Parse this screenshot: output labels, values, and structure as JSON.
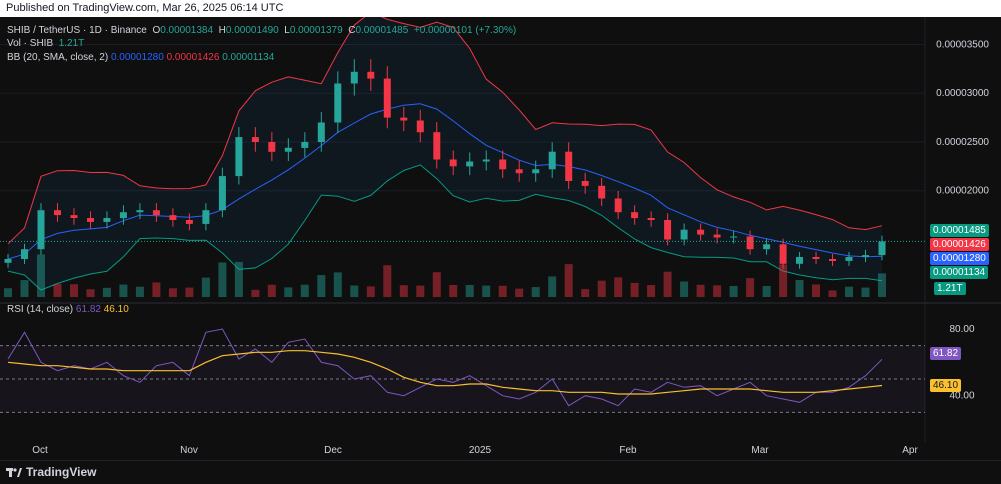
{
  "header": {
    "published": "Published on TradingView.com, Mar 26, 2025 06:14 UTC"
  },
  "legend": {
    "symbol": "SHIB / TetherUS · 1D · Binance",
    "open_label": "O",
    "open": "0.00001384",
    "high_label": "H",
    "high": "0.00001490",
    "low_label": "L",
    "low": "0.00001379",
    "close_label": "C",
    "close": "0.00001485",
    "change": "+0.00000101 (+7.30%)",
    "vol_label": "Vol · SHIB",
    "vol": "1.21T",
    "bb_label": "BB (20, SMA, close, 2)",
    "bb_basis": "0.00001280",
    "bb_upper": "0.00001426",
    "bb_lower": "0.00001134",
    "rsi_label": "RSI (14, close)",
    "rsi": "61.82",
    "rsi_ma": "46.10"
  },
  "price_axis": {
    "ticks": [
      "0.00003500",
      "0.00003000",
      "0.00002500",
      "0.00002000"
    ],
    "tags": {
      "close": "0.00001485",
      "upper": "0.00001426",
      "basis": "0.00001280",
      "lower": "0.00001134",
      "vol": "1.21T"
    }
  },
  "rsi_axis": {
    "ticks": [
      "80.00",
      "40.00"
    ],
    "tags": {
      "rsi": "61.82",
      "ma": "46.10"
    }
  },
  "time_axis": [
    "Oct",
    "Nov",
    "Dec",
    "2025",
    "Feb",
    "Mar",
    "Apr"
  ],
  "branding": {
    "logo_text": "TradingView"
  },
  "colors": {
    "up": "#26a69a",
    "down": "#f23645",
    "basis": "#2962ff",
    "upper": "#f23645",
    "lower": "#089981",
    "rsi": "#7e57c2",
    "rsi_ma": "#fbc02d",
    "band_fill": "#2196f3"
  },
  "chart_data": {
    "type": "candlestick",
    "title": "SHIB / TetherUS · 1D · Binance",
    "price_range": [
      9.1e-06,
      3.72e-05
    ],
    "rsi_range": [
      20,
      92
    ],
    "rsi_levels": [
      70,
      50,
      30
    ],
    "close_series": [
      1.3e-05,
      1.4e-05,
      1.8e-05,
      1.75e-05,
      1.72e-05,
      1.68e-05,
      1.72e-05,
      1.78e-05,
      1.8e-05,
      1.75e-05,
      1.7e-05,
      1.66e-05,
      1.8e-05,
      2.15e-05,
      2.55e-05,
      2.5e-05,
      2.4e-05,
      2.44e-05,
      2.5e-05,
      2.7e-05,
      3.1e-05,
      3.22e-05,
      3.15e-05,
      2.75e-05,
      2.72e-05,
      2.6e-05,
      2.32e-05,
      2.25e-05,
      2.3e-05,
      2.32e-05,
      2.22e-05,
      2.18e-05,
      2.22e-05,
      2.4e-05,
      2.1e-05,
      2.05e-05,
      1.92e-05,
      1.78e-05,
      1.72e-05,
      1.7e-05,
      1.5e-05,
      1.6e-05,
      1.55e-05,
      1.52e-05,
      1.53e-05,
      1.4e-05,
      1.45e-05,
      1.25e-05,
      1.32e-05,
      1.3e-05,
      1.28e-05,
      1.32e-05,
      1.34e-05,
      1.48e-05
    ],
    "rsi_series": [
      62,
      78,
      60,
      55,
      58,
      56,
      60,
      52,
      48,
      58,
      60,
      52,
      78,
      80,
      62,
      68,
      60,
      72,
      74,
      60,
      58,
      50,
      52,
      42,
      40,
      45,
      50,
      48,
      52,
      46,
      40,
      38,
      42,
      50,
      34,
      40,
      38,
      34,
      44,
      42,
      48,
      45,
      46,
      40,
      44,
      48,
      40,
      38,
      36,
      42,
      42,
      45,
      52,
      61.82
    ],
    "rsi_ma_series": [
      60,
      59,
      58,
      58,
      57,
      56,
      56,
      55,
      55,
      55,
      55,
      55,
      60,
      64,
      65,
      66,
      66,
      67,
      67,
      66,
      65,
      63,
      60,
      56,
      51,
      48,
      46,
      46,
      47,
      47,
      45,
      44,
      43,
      43,
      42,
      42,
      42,
      41,
      41,
      41,
      42,
      43,
      44,
      44,
      44,
      44,
      43,
      42,
      42,
      42,
      43,
      44,
      45,
      46.1
    ]
  }
}
